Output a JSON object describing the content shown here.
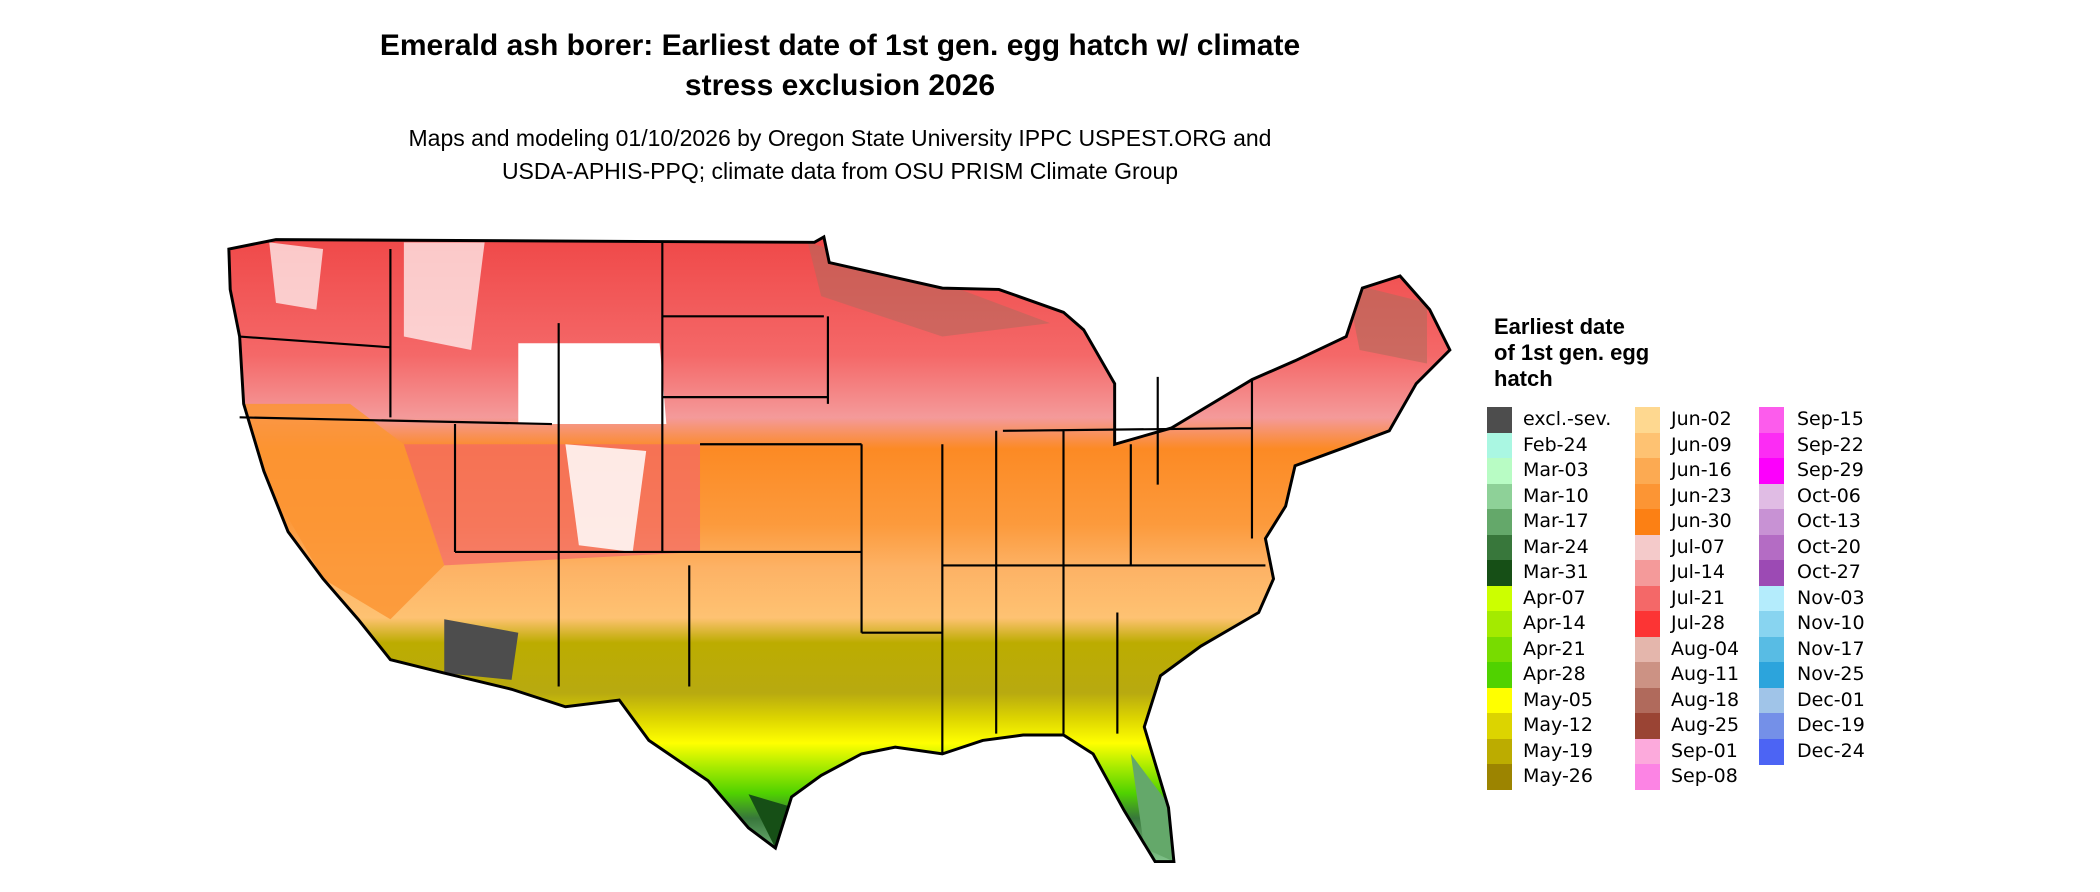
{
  "title": {
    "line1": "Emerald ash borer: Earliest date of 1st gen. egg hatch w/ climate",
    "line2": "stress exclusion 2026"
  },
  "subtitle": {
    "line1": "Maps and modeling 01/10/2026 by Oregon State University IPPC USPEST.ORG and",
    "line2": "USDA-APHIS-PPQ; climate data from OSU PRISM Climate Group"
  },
  "legend": {
    "title_lines": [
      "Earliest date",
      "of 1st gen. egg",
      "hatch"
    ],
    "items": [
      {
        "label": "excl.-sev.",
        "color": "#4d4d4d"
      },
      {
        "label": "Feb-24",
        "color": "#aaf7e2"
      },
      {
        "label": "Mar-03",
        "color": "#b8fcc4"
      },
      {
        "label": "Mar-10",
        "color": "#8ed198"
      },
      {
        "label": "Mar-17",
        "color": "#64a86a"
      },
      {
        "label": "Mar-24",
        "color": "#38773b"
      },
      {
        "label": "Mar-31",
        "color": "#164f16"
      },
      {
        "label": "Apr-07",
        "color": "#ccff00"
      },
      {
        "label": "Apr-14",
        "color": "#a4ea00"
      },
      {
        "label": "Apr-21",
        "color": "#78dc00"
      },
      {
        "label": "Apr-28",
        "color": "#50d200"
      },
      {
        "label": "May-05",
        "color": "#ffff00"
      },
      {
        "label": "May-12",
        "color": "#dcd400"
      },
      {
        "label": "May-19",
        "color": "#bcac00"
      },
      {
        "label": "May-26",
        "color": "#9c8400"
      },
      {
        "label": "Jun-02",
        "color": "#fed890"
      },
      {
        "label": "Jun-09",
        "color": "#fec272"
      },
      {
        "label": "Jun-16",
        "color": "#fcaa52"
      },
      {
        "label": "Jun-23",
        "color": "#fc9534"
      },
      {
        "label": "Jun-30",
        "color": "#fc8014"
      },
      {
        "label": "Jul-07",
        "color": "#f4caca"
      },
      {
        "label": "Jul-14",
        "color": "#f49a9a"
      },
      {
        "label": "Jul-21",
        "color": "#f46868"
      },
      {
        "label": "Jul-28",
        "color": "#fc3434"
      },
      {
        "label": "Aug-04",
        "color": "#e4b6ac"
      },
      {
        "label": "Aug-11",
        "color": "#cc9284"
      },
      {
        "label": "Aug-18",
        "color": "#b06a5c"
      },
      {
        "label": "Aug-25",
        "color": "#9a4434"
      },
      {
        "label": "Sep-01",
        "color": "#fcaadc"
      },
      {
        "label": "Sep-08",
        "color": "#fc84e4"
      },
      {
        "label": "Sep-15",
        "color": "#fc5cec"
      },
      {
        "label": "Sep-22",
        "color": "#fc2cf4"
      },
      {
        "label": "Sep-29",
        "color": "#fc00fc"
      },
      {
        "label": "Oct-06",
        "color": "#e0bce4"
      },
      {
        "label": "Oct-13",
        "color": "#c892d4"
      },
      {
        "label": "Oct-20",
        "color": "#b46cc4"
      },
      {
        "label": "Oct-27",
        "color": "#9c4ab4"
      },
      {
        "label": "Nov-03",
        "color": "#b4ecfc"
      },
      {
        "label": "Nov-10",
        "color": "#88d4f0"
      },
      {
        "label": "Nov-17",
        "color": "#58bce4"
      },
      {
        "label": "Nov-25",
        "color": "#2ca4dc"
      },
      {
        "label": "Dec-01",
        "color": "#a0c4e8"
      },
      {
        "label": "Dec-19",
        "color": "#7490e8"
      },
      {
        "label": "Dec-24",
        "color": "#4c64f4"
      }
    ]
  }
}
